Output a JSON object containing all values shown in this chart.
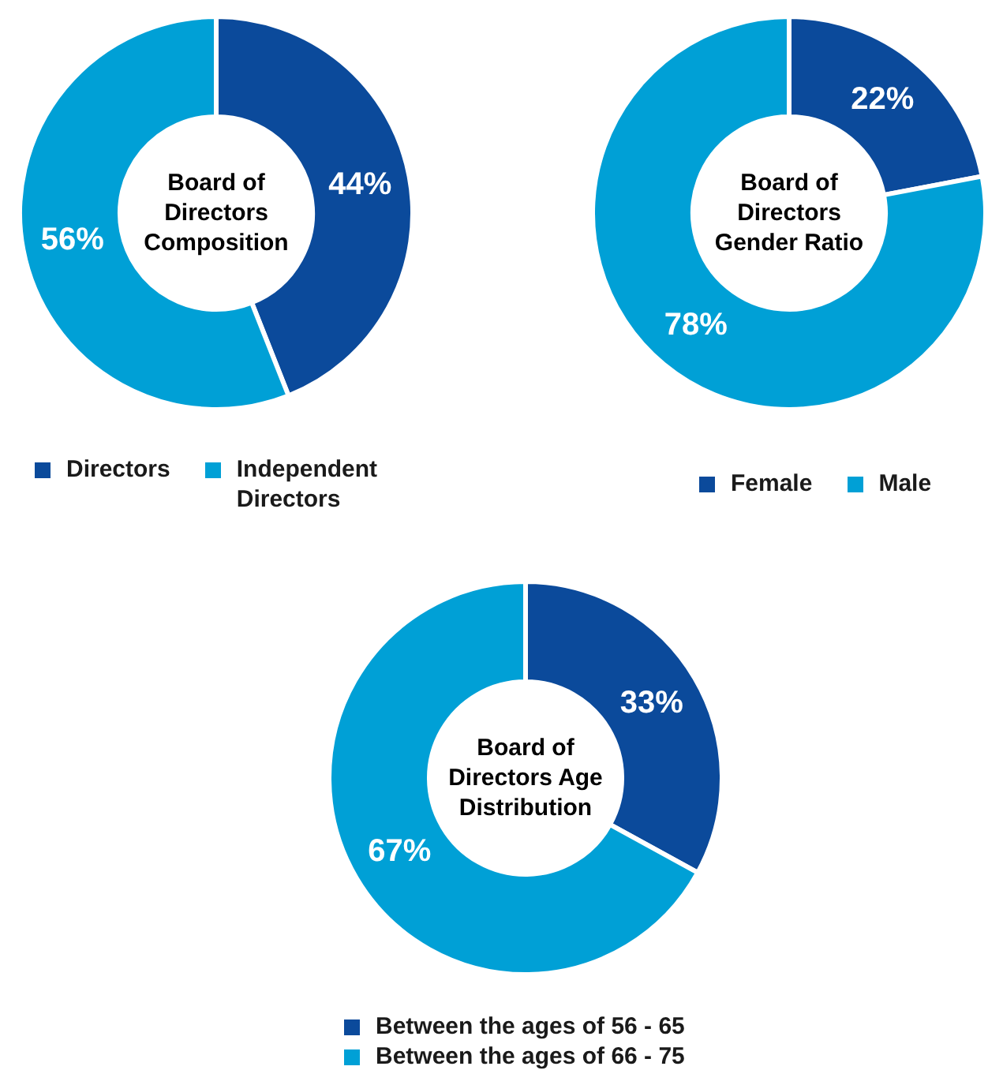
{
  "chart_data": [
    {
      "type": "donut",
      "title": "Board of Directors Composition",
      "categories": [
        "Directors",
        "Independent Directors"
      ],
      "values": [
        44,
        56
      ],
      "colors": [
        "#0b4a9b",
        "#00a0d6"
      ],
      "value_labels": [
        "44%",
        "56%"
      ],
      "legend": "bottom"
    },
    {
      "type": "donut",
      "title": "Board of Directors Gender Ratio",
      "categories": [
        "Female",
        "Male"
      ],
      "values": [
        22,
        78
      ],
      "colors": [
        "#0b4a9b",
        "#00a0d6"
      ],
      "value_labels": [
        "22%",
        "78%"
      ],
      "legend": "bottom"
    },
    {
      "type": "donut",
      "title": "Board of Directors Age Distribution",
      "categories": [
        "Between the ages of 56 - 65",
        "Between the ages of 66 - 75"
      ],
      "values": [
        33,
        67
      ],
      "colors": [
        "#0b4a9b",
        "#00a0d6"
      ],
      "value_labels": [
        "33%",
        "67%"
      ],
      "legend": "bottom"
    }
  ]
}
